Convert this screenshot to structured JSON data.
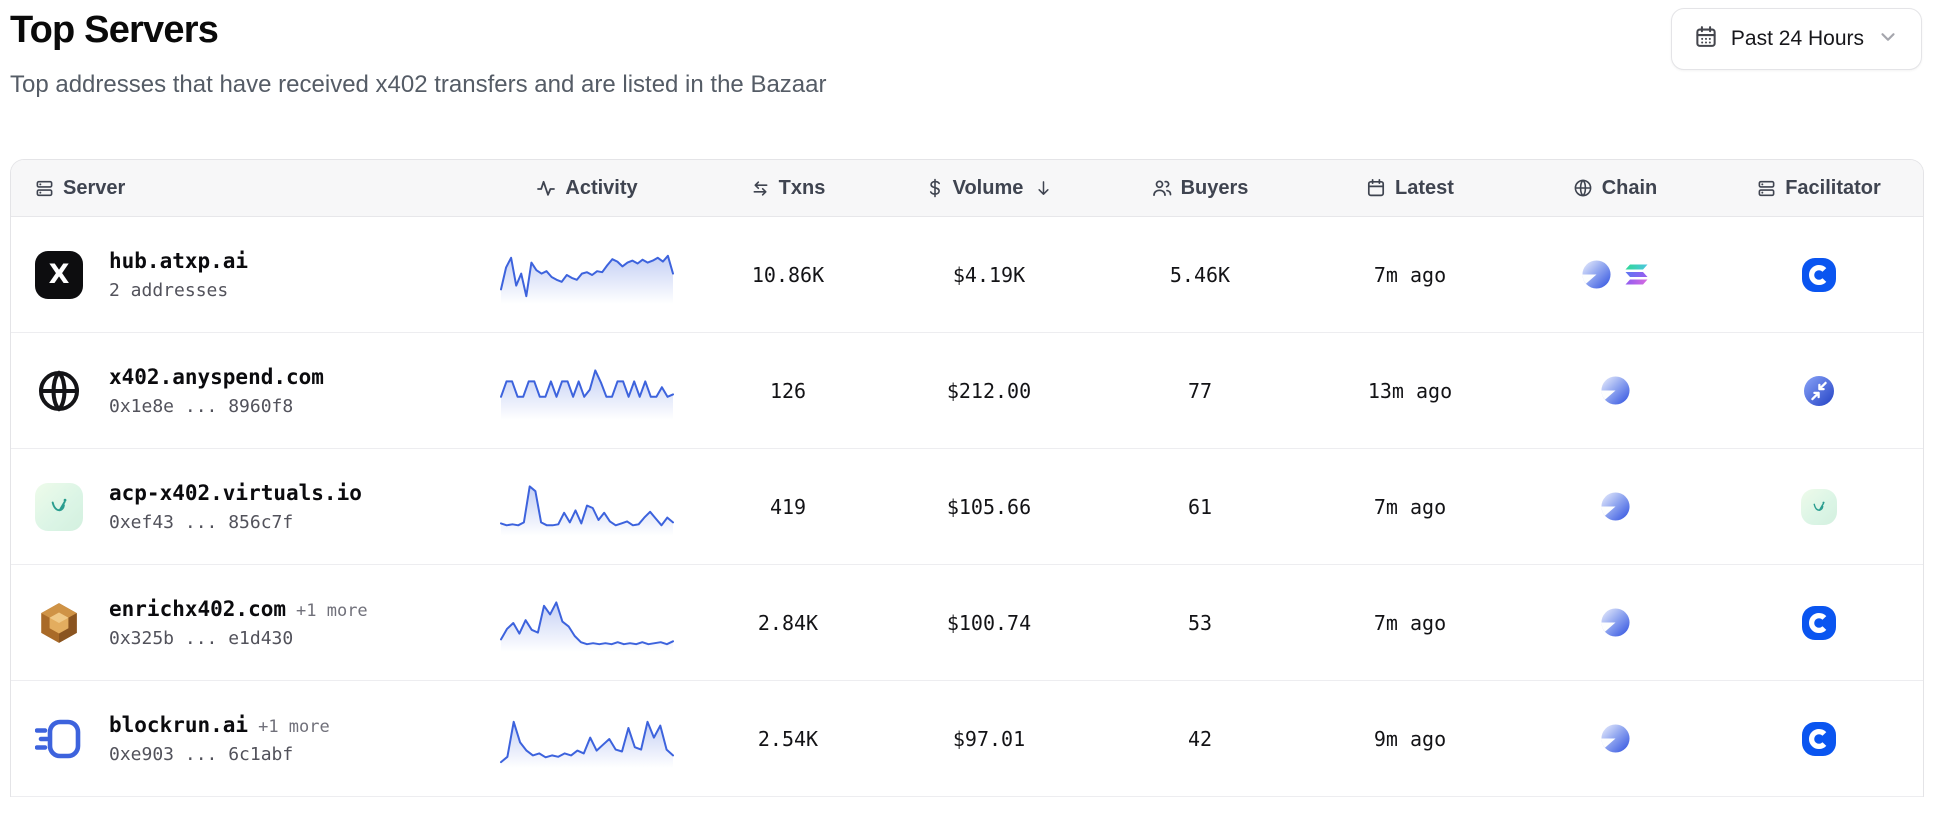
{
  "page": {
    "title": "Top Servers",
    "subtitle": "Top addresses that have received x402 transfers and are listed in the Bazaar"
  },
  "time_filter": {
    "label": "Past 24 Hours",
    "icon": "calendar-icon",
    "chevron": "chevron-down-icon"
  },
  "colors": {
    "accent_blue": "#3d63dd",
    "coinbase_blue": "#0a55f0",
    "header_text": "#3f4450",
    "muted_text": "#52525b",
    "header_bg": "#f7f7f8",
    "border": "#e4e4e7"
  },
  "table": {
    "columns": [
      {
        "key": "server",
        "label": "Server",
        "icon": "server-icon",
        "align": "left"
      },
      {
        "key": "activity",
        "label": "Activity",
        "icon": "activity-icon"
      },
      {
        "key": "txns",
        "label": "Txns",
        "icon": "swap-arrows-icon"
      },
      {
        "key": "volume",
        "label": "Volume",
        "icon": "dollar-icon",
        "sort": "desc"
      },
      {
        "key": "buyers",
        "label": "Buyers",
        "icon": "users-icon"
      },
      {
        "key": "latest",
        "label": "Latest",
        "icon": "calendar-icon"
      },
      {
        "key": "chain",
        "label": "Chain",
        "icon": "globe-icon"
      },
      {
        "key": "facilitator",
        "label": "Facilitator",
        "icon": "server-icon"
      }
    ],
    "rows": [
      {
        "name": "hub.atxp.ai",
        "more": "",
        "subtitle": "2 addresses",
        "avatar": "atxp",
        "txns": "10.86K",
        "volume": "$4.19K",
        "buyers": "5.46K",
        "latest": "7m ago",
        "chains": [
          "base",
          "solana"
        ],
        "facilitator": "coinbase",
        "sparkline": [
          22,
          68,
          88,
          30,
          55,
          8,
          78,
          62,
          55,
          60,
          48,
          42,
          38,
          52,
          46,
          42,
          55,
          58,
          52,
          60,
          58,
          72,
          85,
          80,
          70,
          78,
          82,
          76,
          84,
          78,
          82,
          88,
          80,
          92,
          55
        ]
      },
      {
        "name": "x402.anyspend.com",
        "more": "",
        "subtitle": "0x1e8e ... 8960f8",
        "avatar": "globe",
        "txns": "126",
        "volume": "$212.00",
        "buyers": "77",
        "latest": "13m ago",
        "chains": [
          "base"
        ],
        "facilitator": "anyspend",
        "sparkline": [
          40,
          72,
          72,
          40,
          40,
          72,
          72,
          40,
          40,
          72,
          40,
          72,
          72,
          40,
          72,
          40,
          55,
          95,
          70,
          40,
          40,
          72,
          72,
          40,
          72,
          40,
          72,
          40,
          40,
          60,
          40,
          45
        ]
      },
      {
        "name": "acp-x402.virtuals.io",
        "more": "",
        "subtitle": "0xef43 ... 856c7f",
        "avatar": "virtuals",
        "txns": "419",
        "volume": "$105.66",
        "buyers": "61",
        "latest": "7m ago",
        "chains": [
          "base"
        ],
        "facilitator": "virtuals",
        "sparkline": [
          18,
          14,
          16,
          14,
          20,
          95,
          85,
          20,
          14,
          14,
          16,
          40,
          20,
          45,
          18,
          55,
          50,
          25,
          40,
          22,
          14,
          18,
          22,
          14,
          16,
          30,
          42,
          28,
          14,
          30,
          20
        ]
      },
      {
        "name": "enrichx402.com",
        "more": "+1 more",
        "subtitle": "0x325b ... e1d430",
        "avatar": "gem",
        "txns": "2.84K",
        "volume": "$100.74",
        "buyers": "53",
        "latest": "7m ago",
        "chains": [
          "base"
        ],
        "facilitator": "coinbase",
        "sparkline": [
          18,
          40,
          52,
          30,
          58,
          38,
          32,
          88,
          70,
          95,
          55,
          45,
          25,
          12,
          8,
          10,
          8,
          10,
          8,
          12,
          8,
          10,
          8,
          12,
          8,
          10,
          12,
          8,
          14
        ]
      },
      {
        "name": "blockrun.ai",
        "more": "+1 more",
        "subtitle": "0xe903 ... 6c1abf",
        "avatar": "blockrun",
        "txns": "2.54K",
        "volume": "$97.01",
        "buyers": "42",
        "latest": "9m ago",
        "chains": [
          "base"
        ],
        "facilitator": "coinbase",
        "sparkline": [
          4,
          15,
          88,
          45,
          28,
          18,
          22,
          14,
          18,
          15,
          22,
          18,
          28,
          22,
          55,
          28,
          40,
          52,
          30,
          26,
          75,
          35,
          30,
          88,
          55,
          80,
          30,
          18
        ]
      }
    ]
  }
}
